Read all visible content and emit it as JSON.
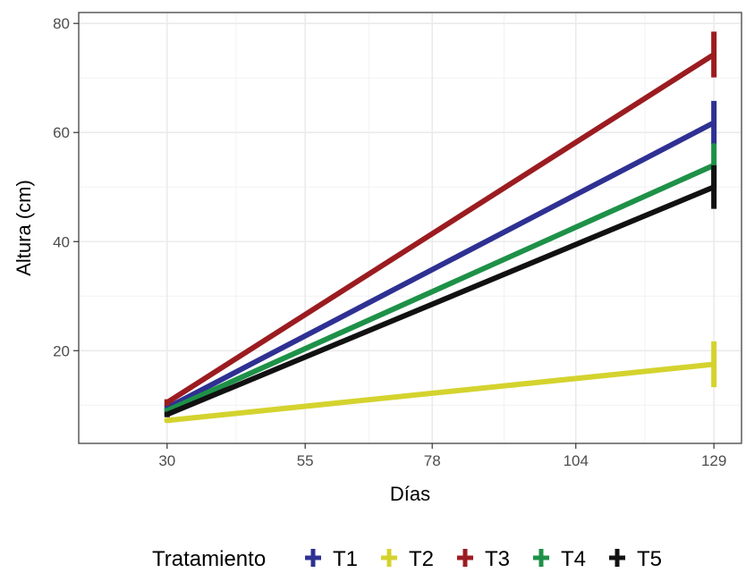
{
  "chart_data": {
    "type": "line",
    "xlabel": "Días",
    "ylabel": "Altura (cm)",
    "x": [
      30,
      129
    ],
    "x_ticks": [
      "30",
      "55",
      "78",
      "104",
      "129"
    ],
    "y_ticks": [
      "20",
      "40",
      "60",
      "80"
    ],
    "xlim": [
      14,
      134
    ],
    "ylim": [
      3,
      82
    ],
    "grid": true,
    "legend_title": "Tratamiento",
    "legend_position": "bottom",
    "series": [
      {
        "name": "T1",
        "color": "#2E3192",
        "values": [
          9.5,
          61.8
        ],
        "error": [
          0.6,
          4.0
        ]
      },
      {
        "name": "T2",
        "color": "#D4D32E",
        "values": [
          7.2,
          17.5
        ],
        "error": [
          0.4,
          4.2
        ]
      },
      {
        "name": "T3",
        "color": "#9B1C20",
        "values": [
          10.5,
          74.3
        ],
        "error": [
          0.6,
          4.2
        ]
      },
      {
        "name": "T4",
        "color": "#1E9148",
        "values": [
          9.0,
          54.0
        ],
        "error": [
          0.5,
          4.0
        ]
      },
      {
        "name": "T5",
        "color": "#111111",
        "values": [
          8.3,
          50.0
        ],
        "error": [
          0.5,
          4.0
        ]
      }
    ]
  }
}
